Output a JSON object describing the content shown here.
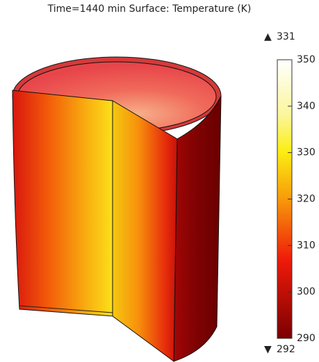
{
  "title": "Time=1440 min   Surface: Temperature (K)",
  "colorbar": {
    "range": [
      290,
      350
    ],
    "ticks": [
      290,
      300,
      310,
      320,
      330,
      340,
      350
    ],
    "max": 331,
    "min": 292
  }
}
